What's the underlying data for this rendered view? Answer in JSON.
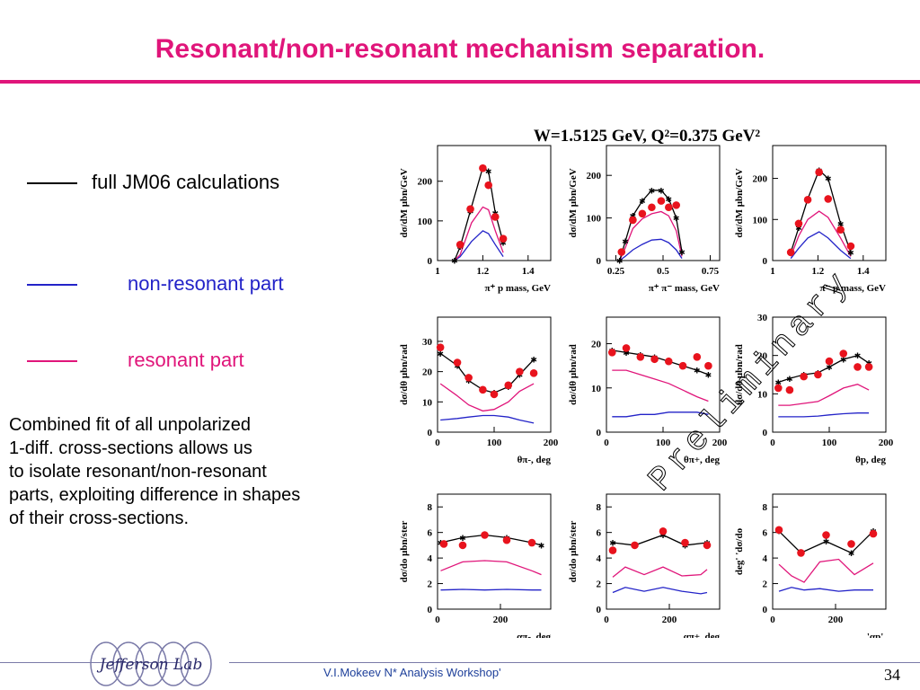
{
  "slide": {
    "title": "Resonant/non-resonant mechanism separation.",
    "title_color": "#e0157a",
    "legend": [
      {
        "label": "full JM06 calculations",
        "color": "#000000"
      },
      {
        "label": "non-resonant part",
        "color": "#2323c8"
      },
      {
        "label": "resonant part",
        "color": "#e0157a"
      }
    ],
    "description": [
      "Combined fit of all unpolarized",
      "1-diff. cross-sections allows us",
      "to isolate resonant/non-resonant",
      "parts, exploiting difference in shapes",
      "of their cross-sections."
    ],
    "footer": "V.I.Mokeev  N* Analysis Workshop'",
    "page_number": "34",
    "logo_text": "Jefferson Lab"
  },
  "figure": {
    "header": "W=1.5125 GeV, Q²=0.375 GeV²",
    "watermark": "Preliminary"
  },
  "chart_data": [
    {
      "type": "line",
      "ylabel": "dσ/dM μbn/GeV",
      "xlabel": "π⁺ p mass, GeV",
      "xlim": [
        1.0,
        1.5
      ],
      "ylim": [
        0,
        290
      ],
      "xticks": [
        1,
        1.2,
        1.4
      ],
      "xtick_labels": [
        "1",
        "1.2",
        "1.4"
      ],
      "yticks": [
        0,
        100,
        200
      ],
      "data_points": {
        "x": [
          1.1,
          1.145,
          1.2,
          1.225,
          1.255,
          1.29
        ],
        "y": [
          40,
          130,
          233,
          190,
          110,
          55
        ]
      },
      "full": {
        "x": [
          1.075,
          1.1,
          1.145,
          1.2,
          1.225,
          1.255,
          1.29
        ],
        "y": [
          0,
          35,
          125,
          235,
          225,
          120,
          45
        ]
      },
      "resonant": {
        "x": [
          1.075,
          1.1,
          1.15,
          1.2,
          1.225,
          1.255,
          1.29
        ],
        "y": [
          0,
          15,
          95,
          135,
          128,
          75,
          20
        ]
      },
      "nonres": {
        "x": [
          1.075,
          1.1,
          1.15,
          1.2,
          1.225,
          1.255,
          1.29
        ],
        "y": [
          0,
          10,
          48,
          75,
          68,
          40,
          10
        ]
      }
    },
    {
      "type": "line",
      "ylabel": "dσ/dM μbn/GeV",
      "xlabel": "π⁺ π⁻ mass, GeV",
      "xlim": [
        0.2,
        0.8
      ],
      "ylim": [
        0,
        270
      ],
      "xticks": [
        0.25,
        0.5,
        0.75
      ],
      "xtick_labels": [
        "0.25",
        "0.5",
        "0.75"
      ],
      "yticks": [
        0,
        100,
        200
      ],
      "data_points": {
        "x": [
          0.28,
          0.34,
          0.39,
          0.44,
          0.49,
          0.53,
          0.57
        ],
        "y": [
          20,
          95,
          110,
          125,
          140,
          125,
          130
        ]
      },
      "full": {
        "x": [
          0.27,
          0.3,
          0.34,
          0.39,
          0.44,
          0.49,
          0.53,
          0.57,
          0.6
        ],
        "y": [
          0,
          45,
          105,
          140,
          165,
          165,
          145,
          100,
          20
        ]
      },
      "resonant": {
        "x": [
          0.27,
          0.3,
          0.34,
          0.39,
          0.44,
          0.49,
          0.53,
          0.57,
          0.6
        ],
        "y": [
          0,
          30,
          75,
          98,
          110,
          115,
          105,
          70,
          10
        ]
      },
      "nonres": {
        "x": [
          0.27,
          0.3,
          0.34,
          0.39,
          0.44,
          0.49,
          0.53,
          0.57,
          0.6
        ],
        "y": [
          0,
          10,
          25,
          38,
          48,
          50,
          42,
          25,
          5
        ]
      }
    },
    {
      "type": "line",
      "ylabel": "dσ/dM μbn/GeV",
      "xlabel": "π⁻ p mass, GeV",
      "xlim": [
        1.0,
        1.5
      ],
      "ylim": [
        0,
        280
      ],
      "xticks": [
        1,
        1.2,
        1.4
      ],
      "xtick_labels": [
        "1",
        "1.2",
        "1.4"
      ],
      "yticks": [
        0,
        100,
        200
      ],
      "data_points": {
        "x": [
          1.08,
          1.115,
          1.155,
          1.205,
          1.245,
          1.3,
          1.345
        ],
        "y": [
          20,
          90,
          148,
          215,
          150,
          75,
          35
        ]
      },
      "full": {
        "x": [
          1.08,
          1.115,
          1.155,
          1.205,
          1.245,
          1.3,
          1.345
        ],
        "y": [
          20,
          80,
          150,
          220,
          200,
          90,
          20
        ]
      },
      "resonant": {
        "x": [
          1.08,
          1.115,
          1.155,
          1.205,
          1.245,
          1.3,
          1.345
        ],
        "y": [
          10,
          60,
          100,
          120,
          105,
          55,
          10
        ]
      },
      "nonres": {
        "x": [
          1.08,
          1.115,
          1.155,
          1.205,
          1.245,
          1.3,
          1.345
        ],
        "y": [
          5,
          30,
          55,
          70,
          55,
          25,
          5
        ]
      }
    },
    {
      "type": "line",
      "ylabel": "dσ/dθ μbn/rad",
      "xlabel": "θπ-, deg",
      "xlim": [
        0,
        200
      ],
      "ylim": [
        0,
        38
      ],
      "xticks": [
        0,
        100,
        200
      ],
      "xtick_labels": [
        "0",
        "100",
        "200"
      ],
      "yticks": [
        0,
        10,
        20,
        30
      ],
      "data_points": {
        "x": [
          5,
          35,
          55,
          80,
          100,
          125,
          145,
          170
        ],
        "y": [
          28,
          23,
          18,
          14,
          12.5,
          15.5,
          20,
          19.5
        ]
      },
      "full": {
        "x": [
          5,
          35,
          55,
          80,
          100,
          125,
          145,
          170
        ],
        "y": [
          26,
          22,
          17,
          14,
          13,
          15,
          19,
          24
        ]
      },
      "resonant": {
        "x": [
          5,
          35,
          55,
          80,
          100,
          125,
          145,
          170
        ],
        "y": [
          16,
          12,
          9,
          7,
          7.5,
          10,
          13.5,
          16
        ]
      },
      "nonres": {
        "x": [
          5,
          35,
          55,
          80,
          100,
          125,
          145,
          170
        ],
        "y": [
          4,
          4.5,
          5,
          5.5,
          5.5,
          5,
          4,
          3
        ]
      }
    },
    {
      "type": "line",
      "ylabel": "dσ/dθ μbn/rad",
      "xlabel": "θπ+, deg",
      "xlim": [
        0,
        200
      ],
      "ylim": [
        0,
        26
      ],
      "xticks": [
        0,
        100,
        200
      ],
      "xtick_labels": [
        "0",
        "100",
        "200"
      ],
      "yticks": [
        0,
        10,
        20
      ],
      "data_points": {
        "x": [
          10,
          35,
          60,
          85,
          110,
          135,
          160,
          180
        ],
        "y": [
          18,
          19,
          17,
          16.5,
          16,
          15,
          17,
          15
        ]
      },
      "full": {
        "x": [
          10,
          35,
          60,
          85,
          110,
          135,
          160,
          180
        ],
        "y": [
          18.5,
          18,
          17.5,
          17,
          16,
          15,
          14,
          13
        ]
      },
      "resonant": {
        "x": [
          10,
          35,
          60,
          85,
          110,
          135,
          160,
          180
        ],
        "y": [
          14,
          14,
          13,
          12,
          11,
          9.5,
          8,
          7
        ]
      },
      "nonres": {
        "x": [
          10,
          35,
          60,
          85,
          110,
          135,
          160,
          180
        ],
        "y": [
          3.5,
          3.5,
          4,
          4,
          4.5,
          4.5,
          4.5,
          4
        ]
      }
    },
    {
      "type": "line",
      "ylabel": "dσ/dθ μbn/rad",
      "xlabel": "θp, deg",
      "xlim": [
        0,
        200
      ],
      "ylim": [
        0,
        30
      ],
      "xticks": [
        0,
        100,
        200
      ],
      "xtick_labels": [
        "0",
        "100",
        "200"
      ],
      "yticks": [
        0,
        10,
        20,
        30
      ],
      "data_points": {
        "x": [
          10,
          30,
          55,
          80,
          100,
          125,
          150,
          170
        ],
        "y": [
          11.5,
          11,
          14.5,
          15,
          18.5,
          20.5,
          17,
          17
        ]
      },
      "full": {
        "x": [
          10,
          30,
          55,
          80,
          100,
          125,
          150,
          170
        ],
        "y": [
          13,
          14,
          15,
          15.5,
          17,
          19,
          20,
          18
        ]
      },
      "resonant": {
        "x": [
          10,
          30,
          55,
          80,
          100,
          125,
          150,
          170
        ],
        "y": [
          7,
          7,
          7.5,
          8,
          9.5,
          11.5,
          12.5,
          11
        ]
      },
      "nonres": {
        "x": [
          10,
          30,
          55,
          80,
          100,
          125,
          150,
          170
        ],
        "y": [
          4,
          4,
          4,
          4.2,
          4.5,
          4.8,
          5,
          5
        ]
      }
    },
    {
      "type": "line",
      "ylabel": "dσ/dο μbn/ster",
      "xlabel": "απ-, deg",
      "xlim": [
        0,
        360
      ],
      "ylim": [
        0,
        9
      ],
      "xticks": [
        0,
        200
      ],
      "xtick_labels": [
        "0",
        "200"
      ],
      "yticks": [
        0,
        2,
        4,
        6,
        8
      ],
      "data_points": {
        "x": [
          20,
          80,
          150,
          220,
          300
        ],
        "y": [
          5.1,
          5.0,
          5.8,
          5.4,
          5.2
        ]
      },
      "full": {
        "x": [
          10,
          80,
          150,
          220,
          300,
          330
        ],
        "y": [
          5.2,
          5.6,
          5.8,
          5.6,
          5.2,
          5.0
        ]
      },
      "resonant": {
        "x": [
          10,
          80,
          150,
          220,
          300,
          330
        ],
        "y": [
          3,
          3.7,
          3.8,
          3.7,
          3.0,
          2.7
        ]
      },
      "nonres": {
        "x": [
          10,
          80,
          150,
          220,
          300,
          330
        ],
        "y": [
          1.5,
          1.55,
          1.5,
          1.55,
          1.5,
          1.5
        ]
      }
    },
    {
      "type": "line",
      "ylabel": "dσ/dο μbn/ster",
      "xlabel": "απ+, deg",
      "xlim": [
        0,
        360
      ],
      "ylim": [
        0,
        9
      ],
      "xticks": [
        0,
        200
      ],
      "xtick_labels": [
        "0",
        "200"
      ],
      "yticks": [
        0,
        2,
        4,
        6,
        8
      ],
      "data_points": {
        "x": [
          20,
          90,
          180,
          250,
          320
        ],
        "y": [
          4.6,
          5.0,
          6.1,
          5.2,
          5.0
        ]
      },
      "full": {
        "x": [
          20,
          90,
          180,
          250,
          320
        ],
        "y": [
          5.2,
          5.0,
          5.8,
          5.0,
          5.2
        ]
      },
      "resonant": {
        "x": [
          20,
          60,
          120,
          180,
          240,
          300,
          320
        ],
        "y": [
          2.5,
          3.3,
          2.7,
          3.3,
          2.6,
          2.7,
          3.1
        ]
      },
      "nonres": {
        "x": [
          20,
          60,
          120,
          180,
          240,
          300,
          320
        ],
        "y": [
          1.3,
          1.7,
          1.4,
          1.7,
          1.4,
          1.2,
          1.3
        ]
      }
    },
    {
      "type": "line",
      "ylabel": "deg' 'dσ/dο",
      "xlabel": "'αp',",
      "xlim": [
        0,
        360
      ],
      "ylim": [
        0,
        9
      ],
      "xticks": [
        0,
        200
      ],
      "xtick_labels": [
        "0",
        "200"
      ],
      "yticks": [
        0,
        2,
        4,
        6,
        8
      ],
      "data_points": {
        "x": [
          20,
          90,
          170,
          250,
          320
        ],
        "y": [
          6.2,
          4.4,
          5.8,
          5.1,
          5.9
        ]
      },
      "full": {
        "x": [
          20,
          90,
          170,
          250,
          320
        ],
        "y": [
          6.1,
          4.4,
          5.3,
          4.4,
          6.1
        ]
      },
      "resonant": {
        "x": [
          20,
          60,
          100,
          150,
          210,
          260,
          320
        ],
        "y": [
          3.5,
          2.6,
          2.1,
          3.7,
          3.9,
          2.7,
          3.6
        ]
      },
      "nonres": {
        "x": [
          20,
          60,
          100,
          150,
          210,
          260,
          320
        ],
        "y": [
          1.4,
          1.7,
          1.5,
          1.6,
          1.4,
          1.5,
          1.5
        ]
      }
    }
  ]
}
